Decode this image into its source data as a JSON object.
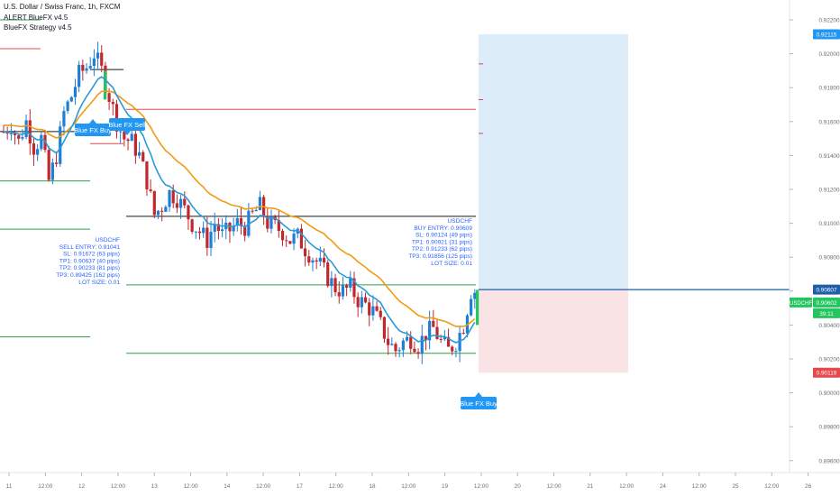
{
  "header": {
    "title": "U.S. Dollar / Swiss Franc, 1h, FXCM",
    "indicator_1": "ALERT BlueFX v4.5",
    "indicator_2": "BlueFX Strategy v4.5"
  },
  "colors": {
    "up_candle": "#1e7fd6",
    "down_candle": "#c2272d",
    "fast_ma": "#2a9bd8",
    "slow_ma": "#f29a12",
    "tp_line": "#2ea043",
    "sl_line": "#e5484d",
    "entry_line": "#131722",
    "profit_zone": "#dcedf9",
    "loss_zone": "#fae3e4",
    "label_blue": "#2196f3",
    "tooltip_text": "#2962ff"
  },
  "price_axis": {
    "ticks": [
      "0.92200",
      "0.92000",
      "0.91800",
      "0.91600",
      "0.91400",
      "0.91200",
      "0.91000",
      "0.90800",
      "0.90600",
      "0.90400",
      "0.90200",
      "0.90000",
      "0.89800",
      "0.89600"
    ],
    "badges": [
      {
        "text": "0.92115",
        "bg": "#2196f3",
        "fg": "#ffffff"
      },
      {
        "text": "0.90607",
        "bg": "#1e5fa8",
        "fg": "#ffffff"
      },
      {
        "text": "0.90602",
        "bg": "#22c55e",
        "fg": "#ffffff"
      },
      {
        "text": "39:11",
        "bg": "#22c55e",
        "fg": "#ffffff"
      },
      {
        "text": "0.90119",
        "bg": "#e5484d",
        "fg": "#ffffff"
      }
    ],
    "symbol_badge": "USDCHF"
  },
  "time_axis": {
    "ticks": [
      "11",
      "12:00",
      "12",
      "12:00",
      "13",
      "12:00",
      "14",
      "12:00",
      "17",
      "12:00",
      "18",
      "12:00",
      "19",
      "12:00",
      "20",
      "12:00",
      "21",
      "12:00",
      "24",
      "12:00",
      "25",
      "12:00",
      "26"
    ]
  },
  "signals": {
    "buy_1": "Blue FX Buy",
    "sell_1": "Blue FX Sell",
    "buy_2": "Blue FX Buy"
  },
  "trade_panel_sell": {
    "lines": [
      "USDCHF",
      "SELL ENTRY: 0.91041",
      "SL: 0.91672 (63 pips)",
      "TP1: 0.90637 (40 pips)",
      "TP2: 0.90233 (81 pips)",
      "TP3: 0.89425 (162 pips)",
      "LOT SIZE: 0.01"
    ]
  },
  "trade_panel_buy": {
    "lines": [
      "USDCHF",
      "BUY ENTRY: 0.90609",
      "SL: 0.90124 (49 pips)",
      "TP1: 0.90921 (31 pips)",
      "TP2: 0.91233 (62 pips)",
      "TP3: 0.91856 (125 pips)",
      "LOT SIZE: 0.01"
    ]
  },
  "chart_data": {
    "type": "candlestick",
    "instrument": "USDCHF",
    "timeframe": "1h",
    "ylim": [
      0.8955,
      0.9235
    ],
    "levels": {
      "sell_entry": 0.91041,
      "sell_sl": 0.91672,
      "sell_tp1": 0.90637,
      "sell_tp2": 0.90233,
      "sell_tp3": 0.89425,
      "buy_entry": 0.90609,
      "buy_sl": 0.90124,
      "buy_tp1": 0.90921,
      "buy_tp2": 0.91233,
      "buy_tp3": 0.91856,
      "profit_top": 0.92115,
      "last_price": 0.90602,
      "stop_bottom": 0.90119
    },
    "price_path": [
      0.9154,
      0.9158,
      0.9148,
      0.916,
      0.9145,
      0.915,
      0.9125,
      0.914,
      0.9165,
      0.9175,
      0.9188,
      0.9192,
      0.92,
      0.919,
      0.9175,
      0.916,
      0.915,
      0.9148,
      0.914,
      0.9125,
      0.9105,
      0.911,
      0.9118,
      0.9115,
      0.9108,
      0.91,
      0.9095,
      0.909,
      0.91,
      0.9093,
      0.9096,
      0.91,
      0.9098,
      0.9105,
      0.911,
      0.91,
      0.9098,
      0.9095,
      0.909,
      0.9092,
      0.9085,
      0.908,
      0.9075,
      0.9068,
      0.9062,
      0.906,
      0.9062,
      0.9055,
      0.9052,
      0.9048,
      0.904,
      0.903,
      0.9025,
      0.903,
      0.9032,
      0.9028,
      0.9035,
      0.9038,
      0.903,
      0.9025,
      0.903,
      0.904,
      0.906
    ]
  }
}
